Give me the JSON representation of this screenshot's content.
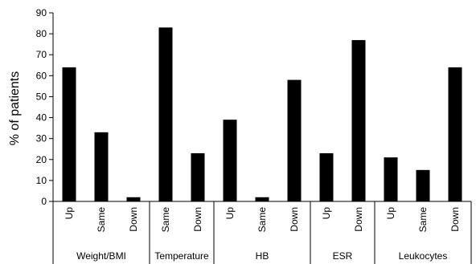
{
  "chart_data": {
    "type": "bar",
    "title": "",
    "xlabel": "",
    "ylabel": "% of patients",
    "ylim": [
      0,
      90
    ],
    "yticks": [
      0,
      10,
      20,
      30,
      40,
      50,
      60,
      70,
      80,
      90
    ],
    "grid": false,
    "legend": "none",
    "bar_color": "#000000",
    "groups": [
      {
        "name": "Weight/BMI",
        "categories": [
          "Up",
          "Same",
          "Down"
        ],
        "values": [
          64,
          33,
          2
        ]
      },
      {
        "name": "Temperature",
        "categories": [
          "Same",
          "Down"
        ],
        "values": [
          83,
          23
        ]
      },
      {
        "name": "HB",
        "categories": [
          "Up",
          "Same",
          "Down"
        ],
        "values": [
          39,
          2,
          58
        ]
      },
      {
        "name": "ESR",
        "categories": [
          "Up",
          "Down"
        ],
        "values": [
          23,
          77
        ]
      },
      {
        "name": "Leukocytes",
        "categories": [
          "Up",
          "Same",
          "Down"
        ],
        "values": [
          21,
          15,
          64
        ]
      }
    ]
  }
}
